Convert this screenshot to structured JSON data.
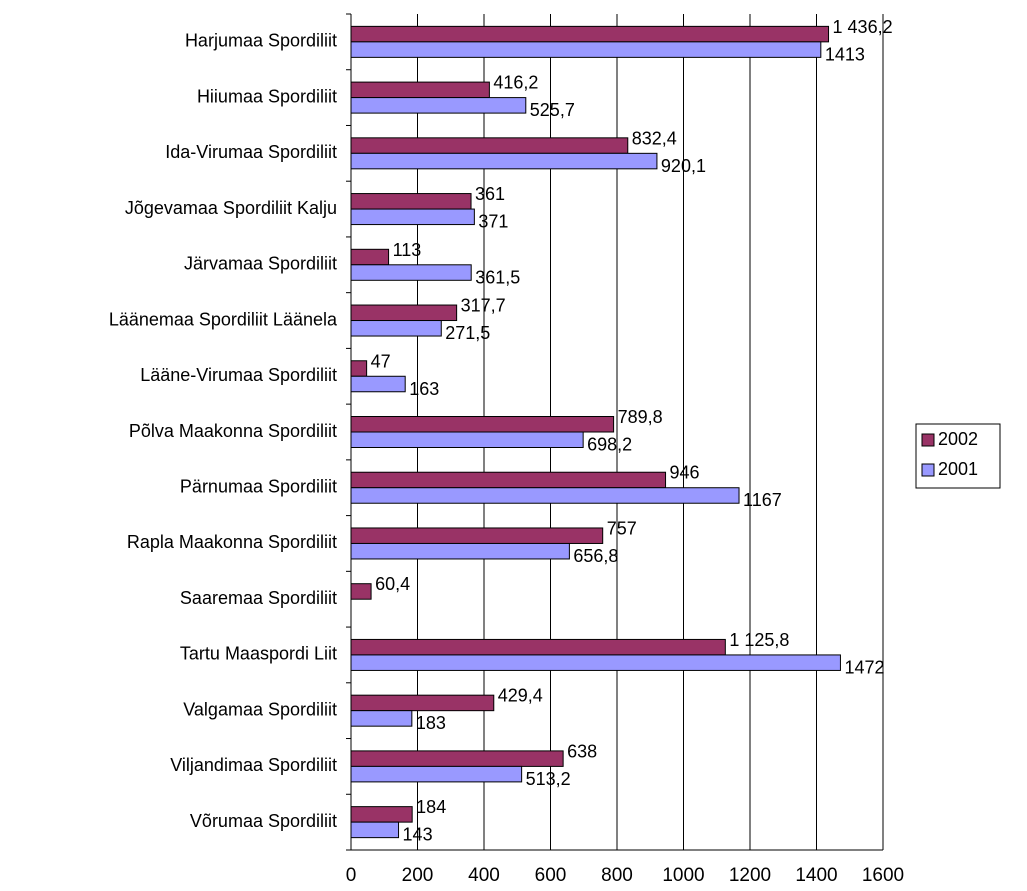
{
  "chart_data": {
    "type": "bar",
    "orientation": "horizontal",
    "categories": [
      "Harjumaa Spordiliit",
      "Hiiumaa Spordiliit",
      "Ida-Virumaa Spordiliit",
      "Jõgevamaa Spordiliit Kalju",
      "Järvamaa Spordiliit",
      "Läänemaa Spordiliit Läänela",
      "Lääne-Virumaa Spordiliit",
      "Põlva Maakonna Spordiliit",
      "Pärnumaa Spordiliit",
      "Rapla Maakonna Spordiliit",
      "Saaremaa Spordiliit",
      "Tartu Maaspordi Liit",
      "Valgamaa Spordiliit",
      "Viljandimaa Spordiliit",
      "Võrumaa Spordiliit"
    ],
    "series": [
      {
        "name": "2002",
        "color": "#993366",
        "values": [
          1436.2,
          416.2,
          832.4,
          361,
          113,
          317.7,
          47,
          789.8,
          946,
          757,
          60.4,
          1125.8,
          429.4,
          638,
          184
        ],
        "value_labels": [
          "1 436,2",
          "416,2",
          "832,4",
          "361",
          "113",
          "317,7",
          "47",
          "789,8",
          "946",
          "757",
          "60,4",
          "1 125,8",
          "429,4",
          "638",
          "184"
        ]
      },
      {
        "name": "2001",
        "color": "#9999ff",
        "values": [
          1413,
          525.7,
          920.1,
          371,
          361.5,
          271.5,
          163,
          698.2,
          1167,
          656.8,
          null,
          1472,
          183,
          513.2,
          143
        ],
        "value_labels": [
          "1413",
          "525,7",
          "920,1",
          "371",
          "361,5",
          "271,5",
          "163",
          "698,2",
          "1167",
          "656,8",
          null,
          "1472",
          "183",
          "513,2",
          "143"
        ]
      }
    ],
    "xlim": [
      0,
      1600
    ],
    "xticks": [
      0,
      200,
      400,
      600,
      800,
      1000,
      1200,
      1400,
      1600
    ],
    "grid": true,
    "legend": "right"
  }
}
